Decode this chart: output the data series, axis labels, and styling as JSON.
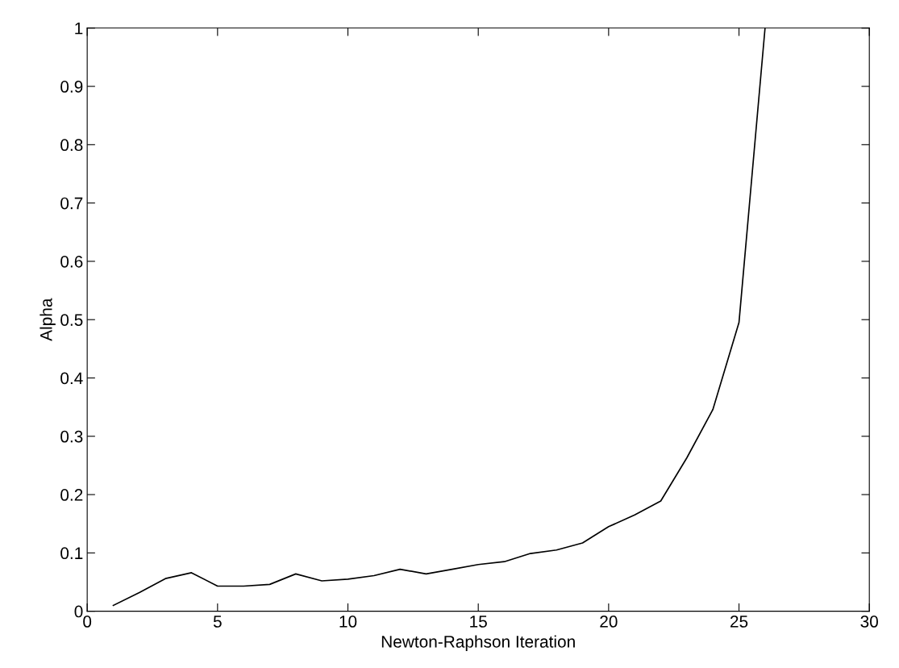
{
  "chart_data": {
    "type": "line",
    "xlabel": "Newton-Raphson Iteration",
    "ylabel": "Alpha",
    "x": [
      1,
      2,
      3,
      4,
      5,
      6,
      7,
      8,
      9,
      10,
      11,
      12,
      13,
      14,
      15,
      16,
      17,
      18,
      19,
      20,
      21,
      22,
      23,
      24,
      25,
      26
    ],
    "series": [
      {
        "color": "#000000",
        "values": [
          0.01,
          0.032,
          0.056,
          0.066,
          0.043,
          0.043,
          0.046,
          0.064,
          0.052,
          0.055,
          0.061,
          0.072,
          0.064,
          0.072,
          0.08,
          0.085,
          0.099,
          0.105,
          0.117,
          0.145,
          0.165,
          0.189,
          0.263,
          0.346,
          0.495,
          1.0
        ]
      }
    ],
    "xlim": [
      0,
      30
    ],
    "xticks": [
      0,
      5,
      10,
      15,
      20,
      25,
      30
    ],
    "ylim": [
      0,
      1
    ],
    "yticks": [
      0,
      0.1,
      0.2,
      0.3,
      0.4,
      0.5,
      0.6,
      0.7,
      0.8,
      0.9,
      1
    ],
    "grid": false,
    "legend": false,
    "line_style": "solid",
    "marker": "none"
  }
}
